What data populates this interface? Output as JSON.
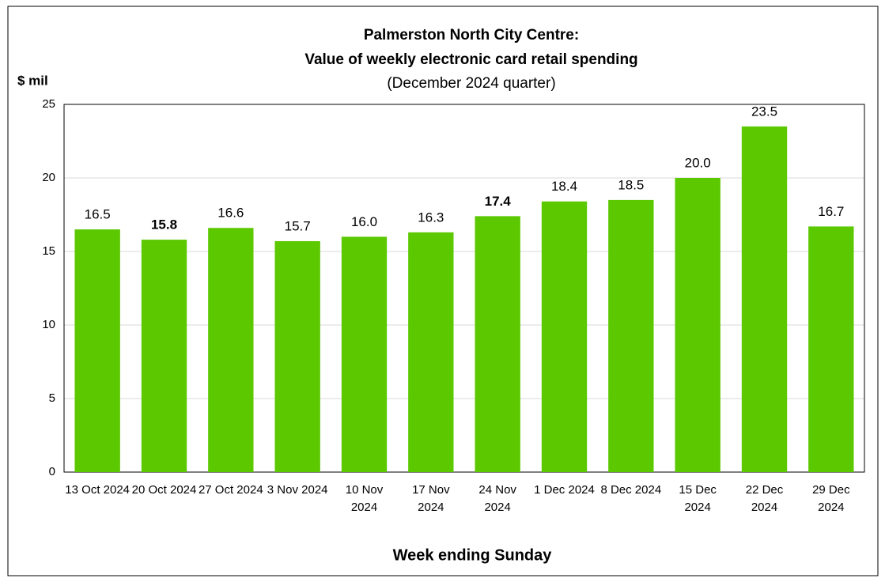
{
  "chart_data": {
    "type": "bar",
    "title": [
      "Palmerston North City Centre:",
      "Value of weekly electronic card retail spending"
    ],
    "subtitle": "(December 2024 quarter)",
    "y_label": "$ mil",
    "x_label": "Week ending Sunday",
    "categories": [
      "13 Oct 2024",
      "20 Oct 2024",
      "27 Oct 2024",
      "3 Nov 2024",
      "10 Nov 2024",
      "17 Nov 2024",
      "24 Nov 2024",
      "1 Dec 2024",
      "8 Dec 2024",
      "15 Dec 2024",
      "22 Dec 2024",
      "29 Dec 2024"
    ],
    "values": [
      16.5,
      15.8,
      16.6,
      15.7,
      16.0,
      16.3,
      17.4,
      18.4,
      18.5,
      20.0,
      23.5,
      16.7
    ],
    "value_labels": [
      "16.5",
      "15.8",
      "16.6",
      "15.7",
      "16.0",
      "16.3",
      "17.4",
      "18.4",
      "18.5",
      "20.0",
      "23.5",
      "16.7"
    ],
    "value_label_bold": [
      false,
      true,
      false,
      false,
      false,
      false,
      true,
      false,
      false,
      false,
      false,
      false
    ],
    "color": "#5bc800",
    "ylim": [
      0,
      25
    ],
    "yticks": [
      0,
      5,
      10,
      15,
      20,
      25
    ],
    "grid": true
  }
}
